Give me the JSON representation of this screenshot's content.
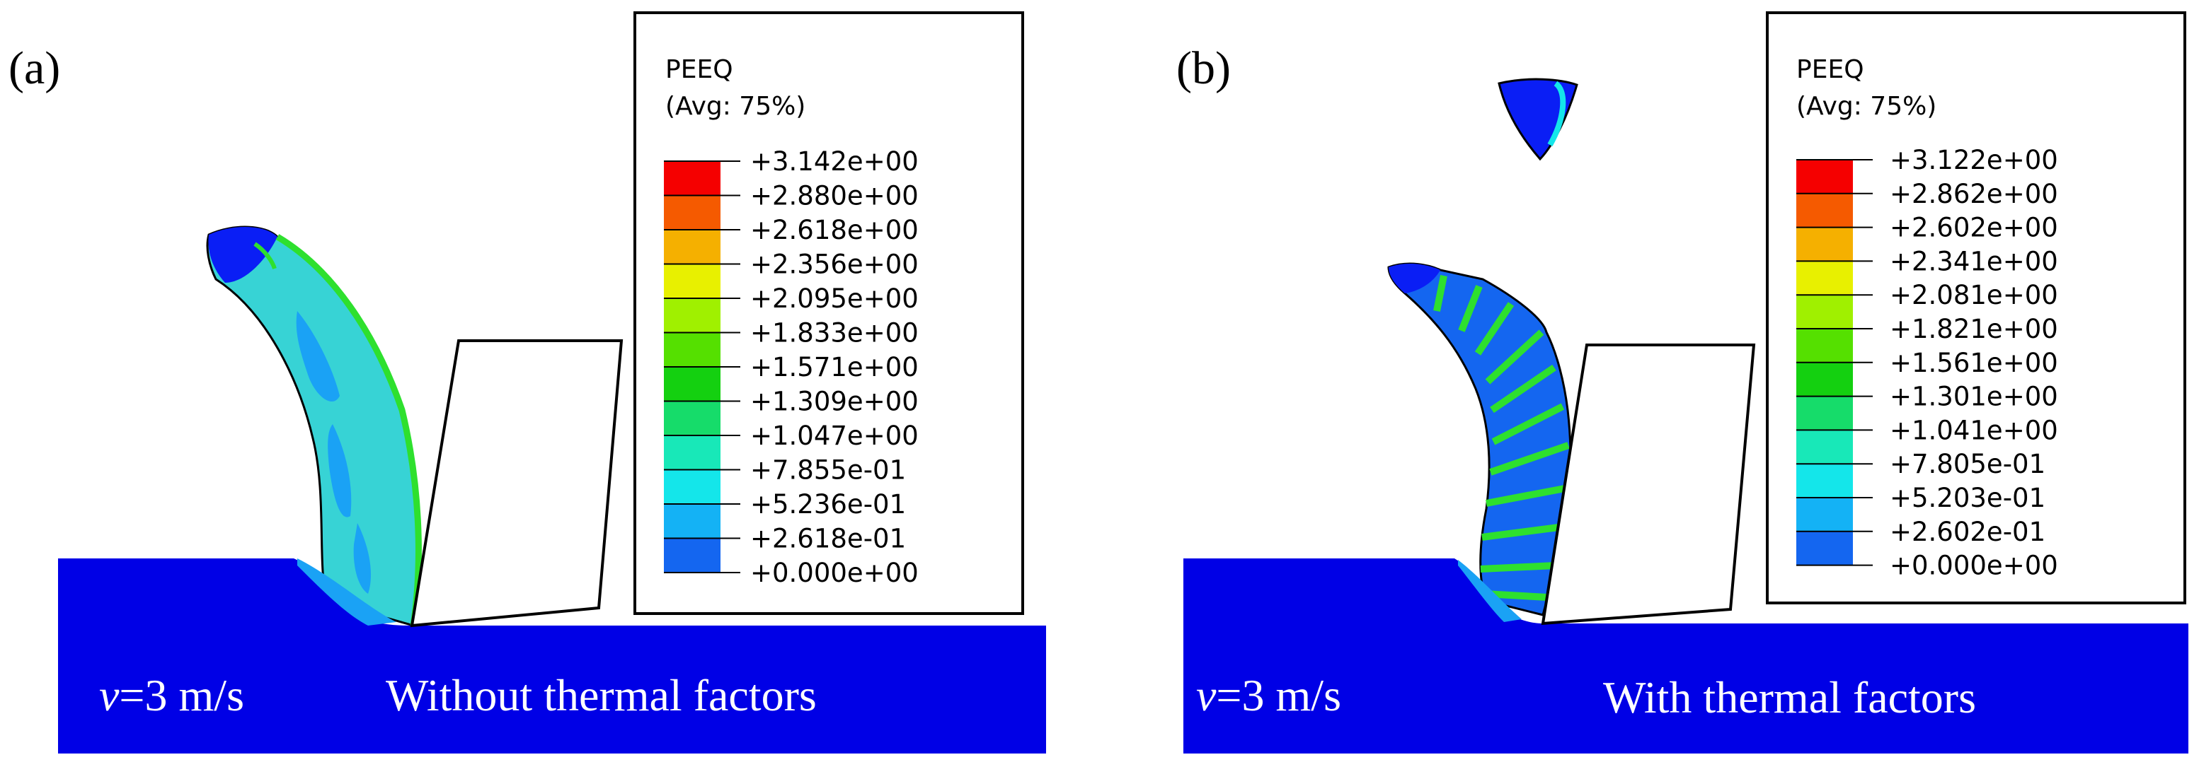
{
  "panels": [
    {
      "panel_label": "(a)",
      "legend_title": "PEEQ",
      "legend_subtitle": "(Avg: 75%)",
      "legend_ticks": [
        "+3.142e+00",
        "+2.880e+00",
        "+2.618e+00",
        "+2.356e+00",
        "+2.095e+00",
        "+1.833e+00",
        "+1.571e+00",
        "+1.309e+00",
        "+1.047e+00",
        "+7.855e-01",
        "+5.236e-01",
        "+2.618e-01",
        "+0.000e+00"
      ],
      "velocity_label": "v=3 m/s",
      "velocity_symbol": "v",
      "velocity_value": "=3 m/s",
      "condition_label": "Without thermal factors"
    },
    {
      "panel_label": "(b)",
      "legend_title": "PEEQ",
      "legend_subtitle": "(Avg: 75%)",
      "legend_ticks": [
        "+3.122e+00",
        "+2.862e+00",
        "+2.602e+00",
        "+2.341e+00",
        "+2.081e+00",
        "+1.821e+00",
        "+1.561e+00",
        "+1.301e+00",
        "+1.041e+00",
        "+7.805e-01",
        "+5.203e-01",
        "+2.602e-01",
        "+0.000e+00"
      ],
      "velocity_label": "v=3 m/s",
      "velocity_symbol": "v",
      "velocity_value": "=3 m/s",
      "condition_label": "With thermal factors"
    }
  ],
  "colors": {
    "workpiece": "#0000e6",
    "chip_base": "#37d3d5",
    "chip_blue_patch": "#1aa2f5",
    "shear_band": "#2ee02e",
    "outline": "#000000",
    "legend_bands": [
      "#f50000",
      "#f55a00",
      "#f5b000",
      "#e8f000",
      "#a0f000",
      "#55e000",
      "#14d010",
      "#16dc6a",
      "#18e8b8",
      "#14e6ea",
      "#14b2f5",
      "#1466f0",
      "#0a1ef5"
    ]
  }
}
